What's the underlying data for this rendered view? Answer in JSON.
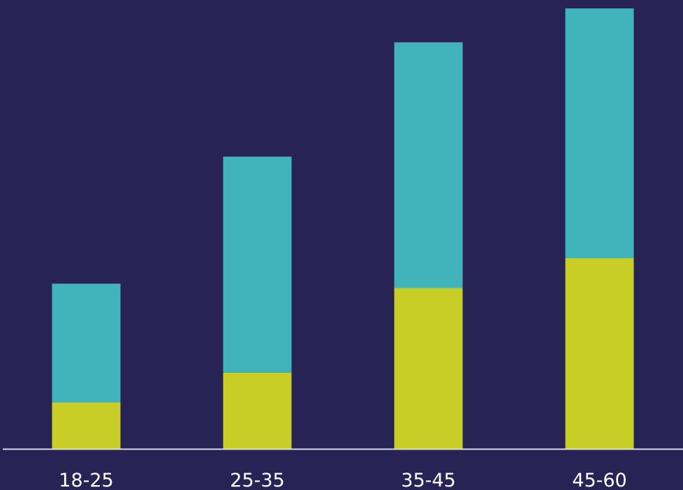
{
  "chart_data": {
    "type": "bar",
    "stacked": true,
    "categories": [
      "18-25",
      "25-35",
      "35-45",
      "45-60"
    ],
    "series": [
      {
        "values": [
          11,
          18,
          38,
          45
        ],
        "color": "#c9ce27"
      },
      {
        "values": [
          28,
          51,
          58,
          59
        ],
        "color": "#41b3ba"
      }
    ],
    "ylim": [
      0,
      105
    ],
    "grid": false,
    "legend": "none",
    "background": "#282355",
    "baseline_color": "#d9d9e6"
  }
}
